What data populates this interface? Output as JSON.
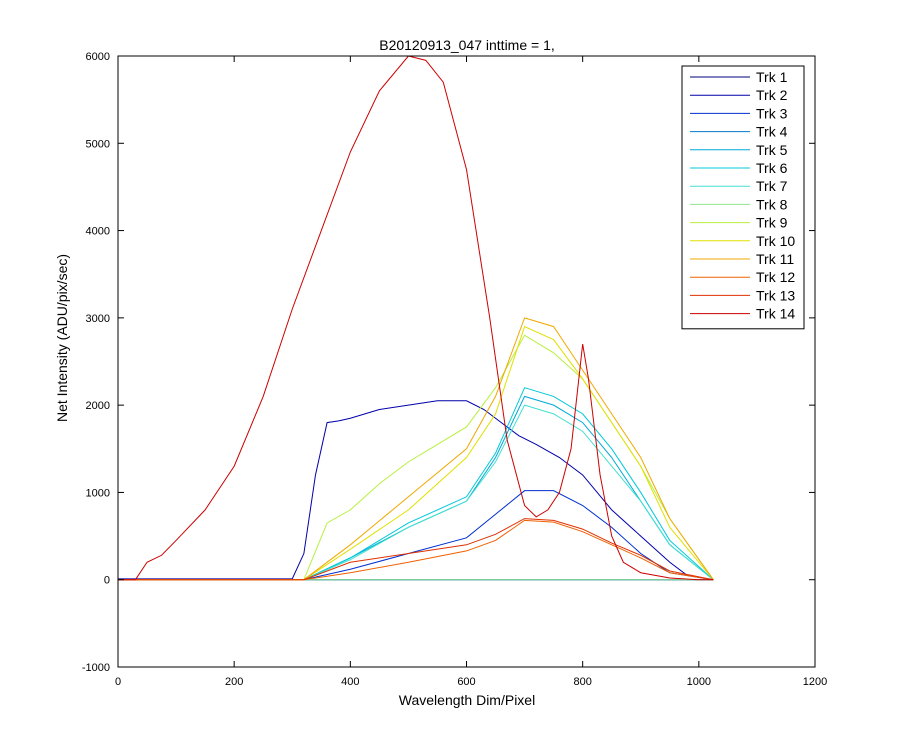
{
  "chart_data": {
    "type": "line",
    "title": "B20120913_047 inttime = 1,",
    "xlabel": "Wavelength Dim/Pixel",
    "ylabel": "Net Intensity (ADU/pix/sec)",
    "xlim": [
      0,
      1200
    ],
    "ylim": [
      -1000,
      6000
    ],
    "xticks": [
      0,
      200,
      400,
      600,
      800,
      1000,
      1200
    ],
    "yticks": [
      -1000,
      0,
      1000,
      2000,
      3000,
      4000,
      5000,
      6000
    ],
    "grid": false,
    "legend": "top-right",
    "series": [
      {
        "name": "Trk 1",
        "color": "#000080",
        "x": [
          0,
          300,
          330,
          900,
          1025
        ],
        "y": [
          0,
          0,
          0,
          0,
          0
        ]
      },
      {
        "name": "Trk 2",
        "color": "#0000aa",
        "x": [
          0,
          300,
          320,
          340,
          360,
          380,
          400,
          450,
          500,
          550,
          600,
          630,
          660,
          690,
          720,
          760,
          800,
          850,
          900,
          950,
          980,
          1025
        ],
        "y": [
          10,
          10,
          300,
          1200,
          1800,
          1820,
          1850,
          1950,
          2000,
          2050,
          2050,
          1950,
          1800,
          1650,
          1550,
          1400,
          1200,
          800,
          500,
          200,
          50,
          0
        ]
      },
      {
        "name": "Trk 3",
        "color": "#0030d0",
        "x": [
          0,
          320,
          400,
          500,
          600,
          650,
          700,
          750,
          800,
          850,
          900,
          950,
          1025
        ],
        "y": [
          0,
          0,
          120,
          300,
          480,
          750,
          1020,
          1020,
          850,
          600,
          300,
          80,
          0
        ]
      },
      {
        "name": "Trk 4",
        "color": "#0078c8",
        "x": [
          0,
          300,
          1025
        ],
        "y": [
          0,
          0,
          0
        ]
      },
      {
        "name": "Trk 5",
        "color": "#00a8d8",
        "x": [
          0,
          320,
          400,
          500,
          600,
          650,
          700,
          750,
          800,
          850,
          900,
          950,
          1025
        ],
        "y": [
          0,
          0,
          250,
          600,
          900,
          1400,
          2100,
          2000,
          1800,
          1400,
          900,
          400,
          0
        ]
      },
      {
        "name": "Trk 6",
        "color": "#00c8d8",
        "x": [
          0,
          320,
          400,
          500,
          600,
          650,
          700,
          750,
          800,
          850,
          900,
          950,
          1025
        ],
        "y": [
          0,
          0,
          250,
          650,
          950,
          1450,
          2200,
          2100,
          1900,
          1500,
          1000,
          450,
          0
        ]
      },
      {
        "name": "Trk 7",
        "color": "#40e0d0",
        "x": [
          0,
          320,
          400,
          500,
          600,
          650,
          700,
          750,
          800,
          850,
          900,
          950,
          1025
        ],
        "y": [
          0,
          0,
          230,
          600,
          900,
          1350,
          2000,
          1900,
          1700,
          1300,
          900,
          400,
          0
        ]
      },
      {
        "name": "Trk 8",
        "color": "#90e890",
        "x": [
          0,
          300,
          1025
        ],
        "y": [
          0,
          0,
          0
        ]
      },
      {
        "name": "Trk 9",
        "color": "#b8f040",
        "x": [
          0,
          320,
          360,
          400,
          450,
          500,
          550,
          600,
          650,
          700,
          750,
          800,
          850,
          900,
          950,
          1025
        ],
        "y": [
          0,
          0,
          650,
          800,
          1100,
          1350,
          1550,
          1750,
          2200,
          2800,
          2600,
          2300,
          1800,
          1300,
          700,
          0
        ]
      },
      {
        "name": "Trk 10",
        "color": "#e0e000",
        "x": [
          0,
          320,
          400,
          500,
          600,
          650,
          700,
          750,
          800,
          850,
          900,
          950,
          1025
        ],
        "y": [
          0,
          0,
          350,
          800,
          1400,
          1900,
          2900,
          2750,
          2300,
          1800,
          1300,
          600,
          0
        ]
      },
      {
        "name": "Trk 11",
        "color": "#f0a800",
        "x": [
          0,
          320,
          400,
          500,
          600,
          650,
          700,
          750,
          800,
          850,
          900,
          950,
          1025
        ],
        "y": [
          0,
          0,
          400,
          950,
          1500,
          2100,
          3000,
          2900,
          2400,
          1900,
          1400,
          700,
          0
        ]
      },
      {
        "name": "Trk 12",
        "color": "#f06000",
        "x": [
          0,
          320,
          400,
          500,
          600,
          650,
          700,
          750,
          800,
          850,
          900,
          950,
          1025
        ],
        "y": [
          0,
          0,
          80,
          200,
          330,
          450,
          680,
          660,
          550,
          400,
          250,
          80,
          0
        ]
      },
      {
        "name": "Trk 13",
        "color": "#e03000",
        "x": [
          0,
          320,
          400,
          500,
          600,
          650,
          700,
          750,
          800,
          850,
          900,
          950,
          1025
        ],
        "y": [
          0,
          0,
          200,
          300,
          400,
          520,
          700,
          680,
          580,
          420,
          280,
          100,
          0
        ]
      },
      {
        "name": "Trk 14",
        "color": "#cc0000",
        "x": [
          0,
          30,
          50,
          75,
          100,
          150,
          200,
          250,
          300,
          350,
          400,
          450,
          500,
          530,
          560,
          600,
          640,
          670,
          700,
          720,
          740,
          760,
          780,
          800,
          810,
          830,
          850,
          870,
          900,
          950,
          1000,
          1025
        ],
        "y": [
          0,
          0,
          200,
          280,
          450,
          800,
          1300,
          2100,
          3100,
          4000,
          4900,
          5600,
          6000,
          5950,
          5700,
          4700,
          3000,
          1600,
          850,
          720,
          800,
          1000,
          1500,
          2700,
          2300,
          1200,
          500,
          200,
          80,
          20,
          0,
          0
        ]
      }
    ]
  }
}
